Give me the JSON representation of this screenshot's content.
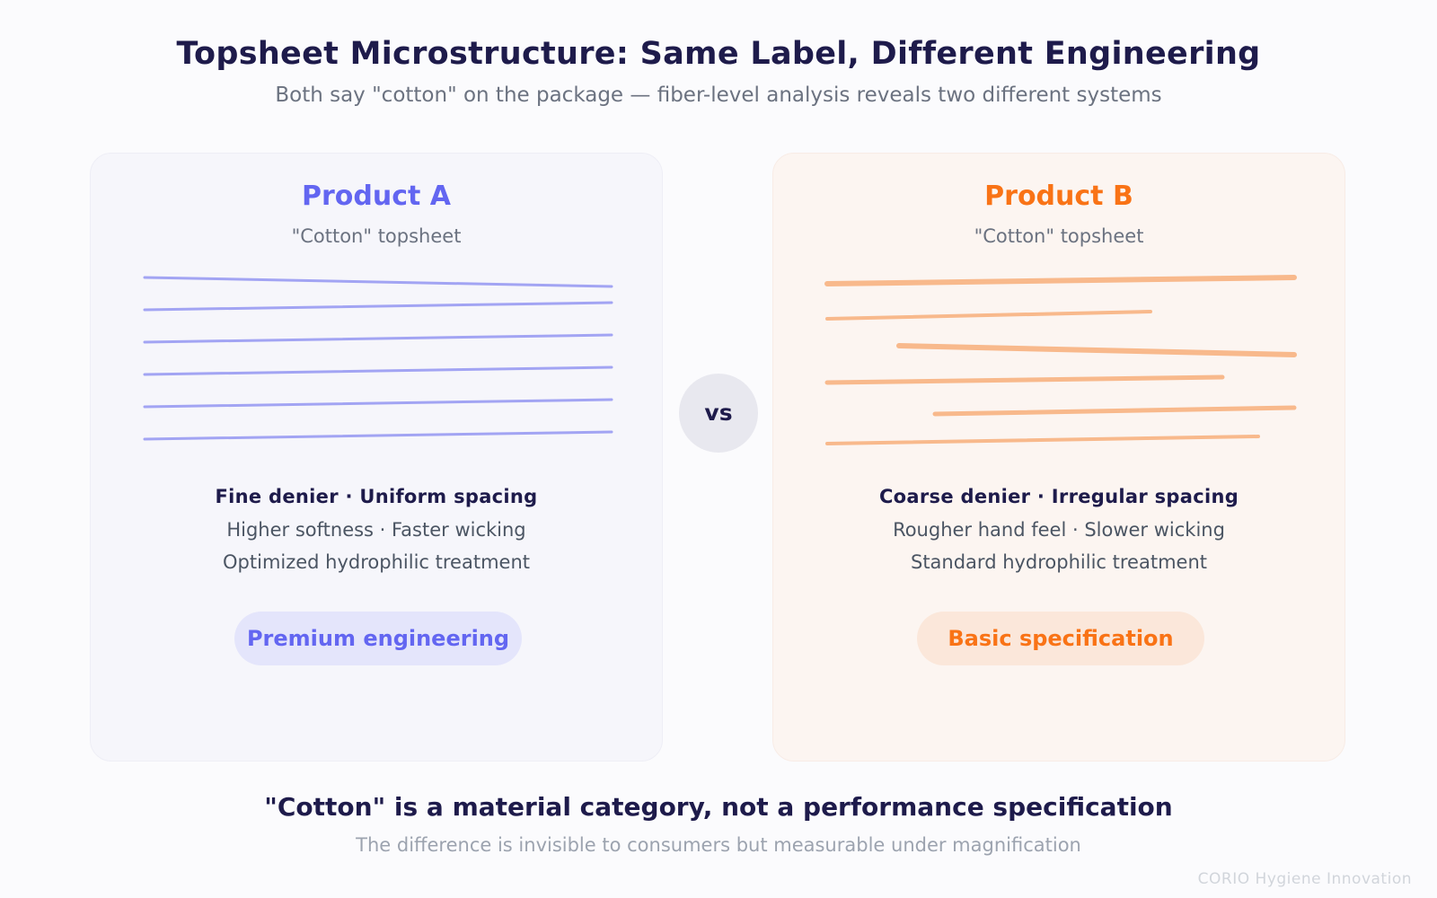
{
  "header": {
    "title": "Topsheet Microstructure: Same Label, Different Engineering",
    "subtitle": "Both say \"cotton\" on the package — fiber-level analysis reveals two different systems"
  },
  "product_a": {
    "name": "Product A",
    "label": "\"Cotton\" topsheet",
    "spec_heading": "Fine denier · Uniform spacing",
    "spec_line_1": "Higher softness · Faster wicking",
    "spec_line_2": "Optimized hydrophilic treatment",
    "badge": "Premium engineering",
    "accent_color": "#6366f1",
    "fiber_color": "#a2a4f3"
  },
  "product_b": {
    "name": "Product B",
    "label": "\"Cotton\" topsheet",
    "spec_heading": "Coarse denier · Irregular spacing",
    "spec_line_1": "Rougher hand feel · Slower wicking",
    "spec_line_2": "Standard hydrophilic treatment",
    "badge": "Basic specification",
    "accent_color": "#f97316",
    "fiber_color": "#f8b98c"
  },
  "comparison": {
    "vs_label": "vs"
  },
  "footer": {
    "headline": "\"Cotton\" is a material category, not a performance specification",
    "note": "The difference is invisible to consumers but measurable under magnification",
    "brand": "CORIO Hygiene Innovation"
  }
}
